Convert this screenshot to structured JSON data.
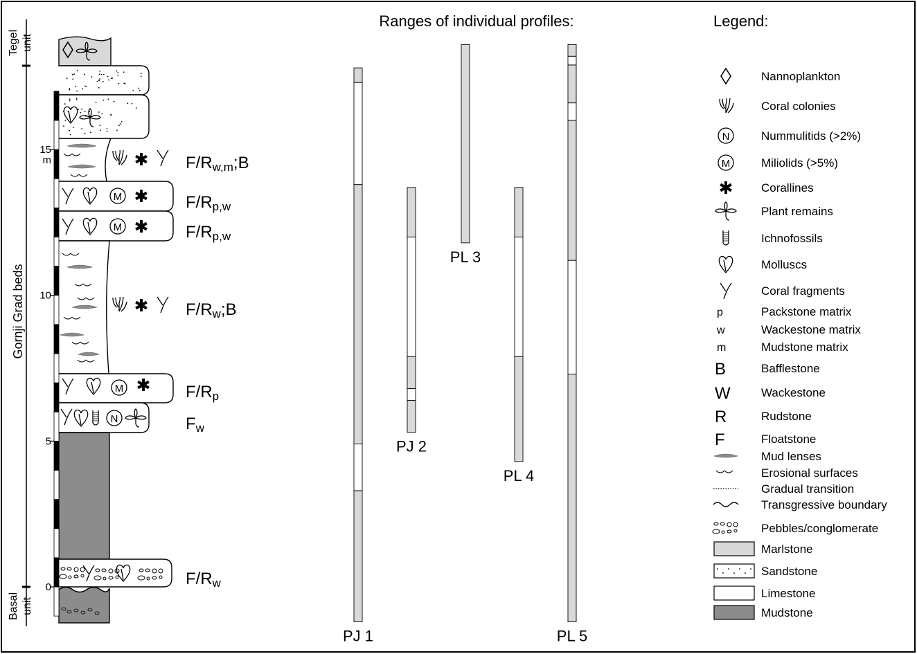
{
  "title": "Ranges of individual profiles:",
  "legend_title": "Legend:",
  "column": {
    "upper_unit": [
      "Tegel",
      "unit"
    ],
    "lower_unit": [
      "Basal",
      "unit"
    ],
    "beds_label": "Gornji Grad beds",
    "scale": {
      "ticks": [
        0,
        5,
        10,
        15
      ],
      "unit": "m"
    },
    "facies": [
      {
        "text": "F/R",
        "sub": "w,m",
        "after": ";B"
      },
      {
        "text": "F/R",
        "sub": "p,w"
      },
      {
        "text": "F/R",
        "sub": "p,w"
      },
      {
        "text": "F/R",
        "sub": "w",
        "after": ";B"
      },
      {
        "text": "F/R",
        "sub": "p"
      },
      {
        "text": "F",
        "sub": "w"
      },
      {
        "text": "F/R",
        "sub": "w"
      }
    ]
  },
  "profiles": [
    {
      "name": "PJ 1",
      "segments": [
        {
          "from": -1.2,
          "to": 3.3,
          "color": "#d9d9d9"
        },
        {
          "from": 3.3,
          "to": 4.9,
          "color": "#ffffff"
        },
        {
          "from": 4.9,
          "to": 13.8,
          "color": "#d9d9d9"
        },
        {
          "from": 13.8,
          "to": 17.3,
          "color": "#ffffff"
        },
        {
          "from": 17.3,
          "to": 17.8,
          "color": "#d9d9d9"
        }
      ]
    },
    {
      "name": "PJ 2",
      "segments": [
        {
          "from": 5.3,
          "to": 6.4,
          "color": "#d9d9d9"
        },
        {
          "from": 6.4,
          "to": 6.8,
          "color": "#ffffff"
        },
        {
          "from": 6.8,
          "to": 7.9,
          "color": "#d9d9d9"
        },
        {
          "from": 7.9,
          "to": 12.0,
          "color": "#ffffff"
        },
        {
          "from": 12.0,
          "to": 13.7,
          "color": "#d9d9d9"
        }
      ]
    },
    {
      "name": "PL 3",
      "segments": [
        {
          "from": 11.8,
          "to": 18.6,
          "color": "#d9d9d9"
        }
      ]
    },
    {
      "name": "PL 4",
      "segments": [
        {
          "from": 4.3,
          "to": 7.9,
          "color": "#d9d9d9"
        },
        {
          "from": 7.9,
          "to": 12.0,
          "color": "#ffffff"
        },
        {
          "from": 12.0,
          "to": 13.7,
          "color": "#d9d9d9"
        }
      ]
    },
    {
      "name": "PL 5",
      "segments": [
        {
          "from": -1.2,
          "to": 7.3,
          "color": "#d9d9d9"
        },
        {
          "from": 7.3,
          "to": 11.2,
          "color": "#ffffff"
        },
        {
          "from": 11.2,
          "to": 16.0,
          "color": "#d9d9d9"
        },
        {
          "from": 16.0,
          "to": 16.6,
          "color": "#ffffff"
        },
        {
          "from": 16.6,
          "to": 17.9,
          "color": "#d9d9d9"
        },
        {
          "from": 17.9,
          "to": 18.2,
          "color": "#ffffff"
        },
        {
          "from": 18.2,
          "to": 18.6,
          "color": "#d9d9d9"
        }
      ]
    }
  ],
  "legend": {
    "items": [
      {
        "label": "Nannoplankton"
      },
      {
        "label": "Coral colonies"
      },
      {
        "symbol": "N",
        "label": "Nummulitids (>2%)"
      },
      {
        "symbol": "M",
        "label": "Miliolids (>5%)"
      },
      {
        "label": "Corallines"
      },
      {
        "label": "Plant remains"
      },
      {
        "label": "Ichnofossils"
      },
      {
        "label": "Molluscs"
      },
      {
        "label": "Coral fragments"
      },
      {
        "symbol": "p",
        "label": "Packstone matrix"
      },
      {
        "symbol": "w",
        "label": "Wackestone matrix"
      },
      {
        "symbol": "m",
        "label": "Mudstone matrix"
      },
      {
        "symbol": "B",
        "label": "Bafflestone"
      },
      {
        "symbol": "W",
        "label": "Wackestone"
      },
      {
        "symbol": "R",
        "label": "Rudstone"
      },
      {
        "symbol": "F",
        "label": "Floatstone"
      },
      {
        "label": "Mud lenses"
      },
      {
        "label": "Erosional surfaces"
      },
      {
        "label": "Gradual transition"
      },
      {
        "label": "Transgressive boundary"
      },
      {
        "label": "Pebbles/conglomerate"
      },
      {
        "label": "Marlstone"
      },
      {
        "label": "Sandstone"
      },
      {
        "label": "Limestone"
      },
      {
        "label": "Mudstone"
      }
    ]
  }
}
